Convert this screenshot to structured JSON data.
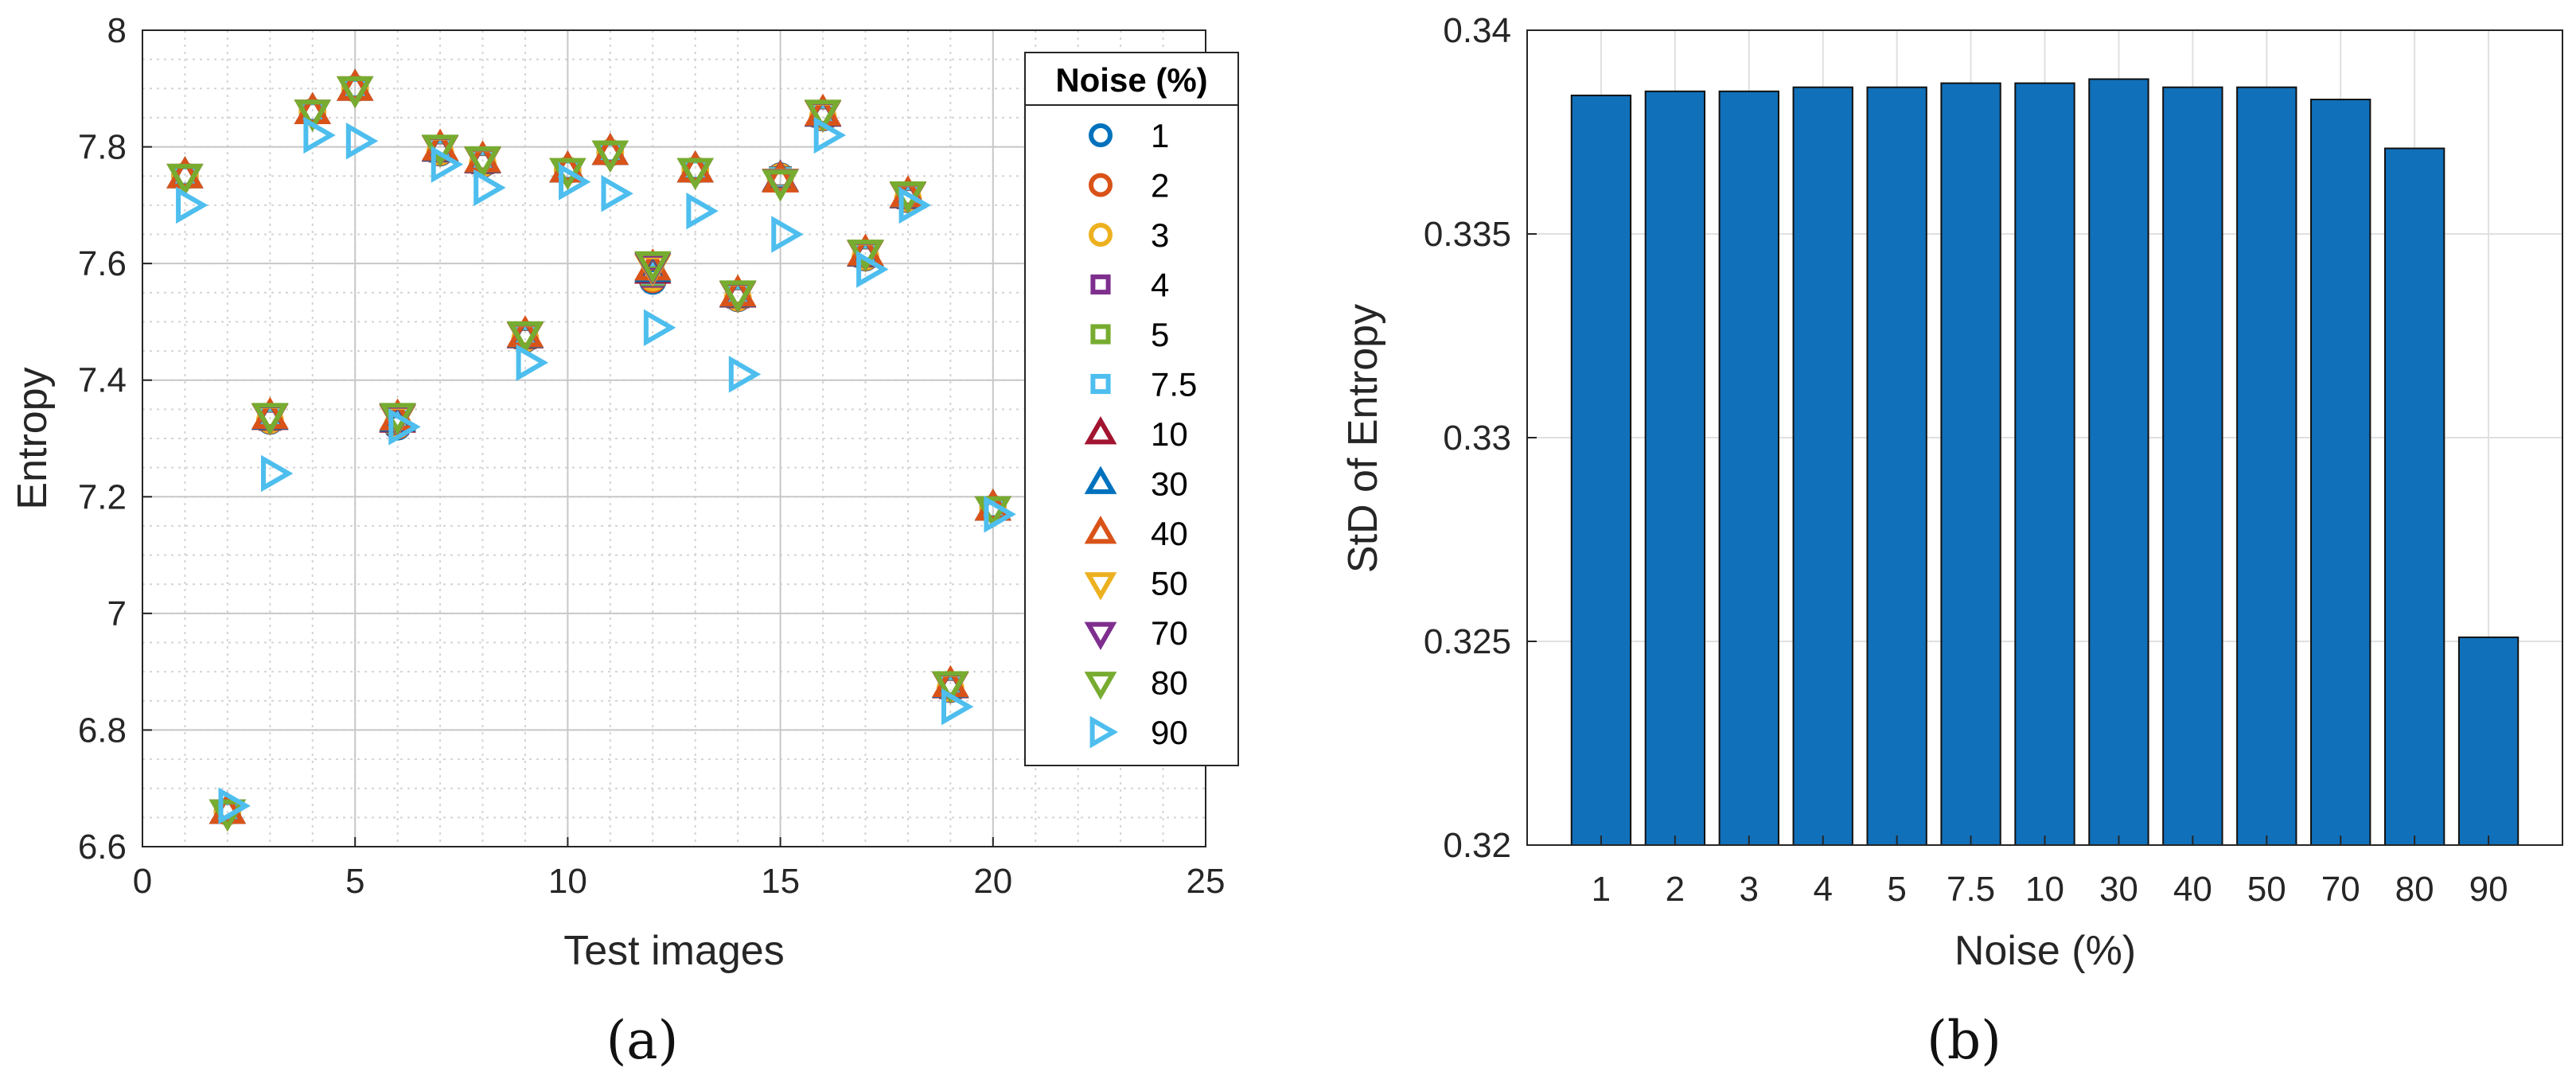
{
  "chart_data": [
    {
      "type": "scatter",
      "panel_label": "(a)",
      "xlabel": "Test images",
      "ylabel": "Entropy",
      "xlim": [
        0,
        25
      ],
      "ylim": [
        6.6,
        8
      ],
      "xticks": [
        0,
        5,
        10,
        15,
        20,
        25
      ],
      "yticks": [
        6.6,
        6.8,
        7,
        7.2,
        7.4,
        7.6,
        7.8,
        8
      ],
      "ytick_labels": [
        "6.6",
        "6.8",
        "7",
        "7.2",
        "7.4",
        "7.6",
        "7.8",
        "8"
      ],
      "grid": true,
      "minor_grid": true,
      "legend": {
        "title": "Noise  (%)",
        "position": "top-right",
        "entries": [
          {
            "label": "1",
            "marker": "circle",
            "color": "#0072BD"
          },
          {
            "label": "2",
            "marker": "circle",
            "color": "#D95319"
          },
          {
            "label": "3",
            "marker": "circle",
            "color": "#EDB120"
          },
          {
            "label": "4",
            "marker": "square",
            "color": "#7E2F8E"
          },
          {
            "label": "5",
            "marker": "square",
            "color": "#77AC30"
          },
          {
            "label": "7.5",
            "marker": "square",
            "color": "#4DBEEE"
          },
          {
            "label": "10",
            "marker": "triangle-up",
            "color": "#A2142F"
          },
          {
            "label": "30",
            "marker": "triangle-up",
            "color": "#0072BD"
          },
          {
            "label": "40",
            "marker": "triangle-up",
            "color": "#D95319"
          },
          {
            "label": "50",
            "marker": "triangle-down",
            "color": "#EDB120"
          },
          {
            "label": "70",
            "marker": "triangle-down",
            "color": "#7E2F8E"
          },
          {
            "label": "80",
            "marker": "triangle-down",
            "color": "#77AC30"
          },
          {
            "label": "90",
            "marker": "triangle-right",
            "color": "#4DBEEE"
          }
        ]
      },
      "x": [
        1,
        2,
        3,
        4,
        5,
        6,
        7,
        8,
        9,
        10,
        11,
        12,
        13,
        14,
        15,
        16,
        17,
        18,
        19,
        20
      ],
      "series_low_noise_values": [
        7.75,
        6.66,
        7.33,
        7.86,
        7.9,
        7.32,
        7.79,
        7.77,
        7.47,
        7.76,
        7.79,
        7.57,
        7.76,
        7.54,
        7.75,
        7.85,
        7.61,
        7.71,
        6.87,
        7.18
      ],
      "series_80_values": [
        7.75,
        6.66,
        7.34,
        7.86,
        7.9,
        7.34,
        7.8,
        7.78,
        7.48,
        7.76,
        7.79,
        7.6,
        7.76,
        7.55,
        7.74,
        7.86,
        7.62,
        7.72,
        6.88,
        7.18
      ],
      "series_90_values": [
        7.7,
        6.67,
        7.24,
        7.82,
        7.81,
        7.32,
        7.77,
        7.73,
        7.43,
        7.74,
        7.72,
        7.49,
        7.69,
        7.41,
        7.65,
        7.82,
        7.59,
        7.7,
        6.84,
        7.17
      ]
    },
    {
      "type": "bar",
      "panel_label": "(b)",
      "xlabel": "Noise  (%)",
      "ylabel": "StD of Entropy",
      "categories": [
        "1",
        "2",
        "3",
        "4",
        "5",
        "7.5",
        "10",
        "30",
        "40",
        "50",
        "70",
        "80",
        "90"
      ],
      "values": [
        0.3384,
        0.3385,
        0.3385,
        0.3386,
        0.3386,
        0.3387,
        0.3387,
        0.3388,
        0.3386,
        0.3386,
        0.3383,
        0.3371,
        0.3251
      ],
      "ylim": [
        0.32,
        0.34
      ],
      "yticks": [
        0.32,
        0.325,
        0.33,
        0.335,
        0.34
      ],
      "ytick_labels": [
        "0.32",
        "0.325",
        "0.33",
        "0.335",
        "0.34"
      ],
      "bar_color": "#1170BA",
      "grid": true
    }
  ]
}
